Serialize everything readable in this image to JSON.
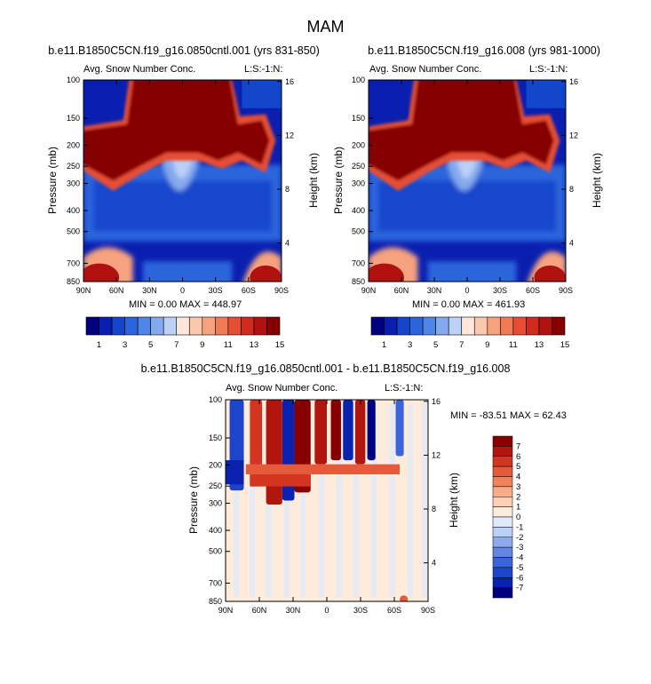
{
  "page": {
    "title": "MAM"
  },
  "colors": {
    "scale15": [
      "#00007f",
      "#0a1fb0",
      "#1446cc",
      "#2a65dc",
      "#4f86e6",
      "#84a9ee",
      "#bcd1f6",
      "#fde7da",
      "#fbc8ac",
      "#f6a27e",
      "#ef7a55",
      "#e64e34",
      "#d12a1e",
      "#b0130f",
      "#870000"
    ],
    "diff16": [
      "#00007f",
      "#0b22ae",
      "#1d45cb",
      "#3a64d9",
      "#6186e4",
      "#8ea9ec",
      "#bcd1f5",
      "#dfeafb",
      "#fdebdc",
      "#fcd0b6",
      "#f8ab88",
      "#f0835c",
      "#e55a3b",
      "#d33520",
      "#b0160e",
      "#870000"
    ]
  },
  "chart_data": [
    {
      "type": "heatmap",
      "title": "b.e11.B1850C5CN.f19_g16.0850cntl.001 (yrs 831-850)",
      "left_label": "Avg. Snow Number Conc.",
      "right_label": "L:S:-1:N:",
      "ylabel": "Pressure (mb)",
      "ylabel_right": "Height (km)",
      "x_ticks": [
        "90N",
        "60N",
        "30N",
        "0",
        "30S",
        "60S",
        "90S"
      ],
      "y_ticks": [
        "100",
        "150",
        "200",
        "250",
        "300",
        "400",
        "500",
        "700",
        "850"
      ],
      "y_ticks_right": [
        "16",
        "12",
        "8",
        "4"
      ],
      "stats": "MIN =   0.00  MAX = 448.97",
      "colorbar_labels": [
        "1",
        "3",
        "5",
        "7",
        "9",
        "11",
        "13",
        "15"
      ],
      "scale": "scale15"
    },
    {
      "type": "heatmap",
      "title": "b.e11.B1850C5CN.f19_g16.008 (yrs 981-1000)",
      "left_label": "Avg. Snow Number Conc.",
      "right_label": "L:S:-1:N:",
      "ylabel": "Pressure (mb)",
      "ylabel_right": "Height (km)",
      "x_ticks": [
        "90N",
        "60N",
        "30N",
        "0",
        "30S",
        "60S",
        "90S"
      ],
      "y_ticks": [
        "100",
        "150",
        "200",
        "250",
        "300",
        "400",
        "500",
        "700",
        "850"
      ],
      "y_ticks_right": [
        "16",
        "12",
        "8",
        "4"
      ],
      "stats": "MIN =   0.00  MAX = 461.93",
      "colorbar_labels": [
        "1",
        "3",
        "5",
        "7",
        "9",
        "11",
        "13",
        "15"
      ],
      "scale": "scale15"
    },
    {
      "type": "heatmap",
      "title": "b.e11.B1850C5CN.f19_g16.0850cntl.001 - b.e11.B1850C5CN.f19_g16.008",
      "left_label": "Avg. Snow Number Conc.",
      "right_label": "L:S:-1:N:",
      "ylabel": "Pressure (mb)",
      "ylabel_right": "Height (km)",
      "x_ticks": [
        "90N",
        "60N",
        "30N",
        "0",
        "30S",
        "60S",
        "90S"
      ],
      "y_ticks": [
        "100",
        "150",
        "200",
        "250",
        "300",
        "400",
        "500",
        "700",
        "850"
      ],
      "y_ticks_right": [
        "16",
        "12",
        "8",
        "4"
      ],
      "stats": "MIN = -83.51  MAX =  62.43",
      "colorbar_labels": [
        "7",
        "6",
        "5",
        "4",
        "3",
        "2",
        "1",
        "0",
        "-1",
        "-2",
        "-3",
        "-4",
        "-5",
        "-6",
        "-7"
      ],
      "scale": "diff16"
    }
  ]
}
